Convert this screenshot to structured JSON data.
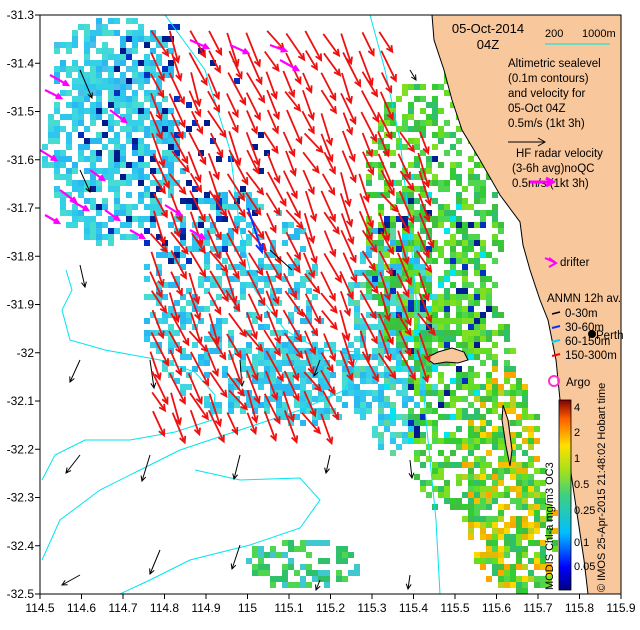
{
  "title": {
    "date": "05-Oct-2014",
    "time": "04Z"
  },
  "scale_bar": {
    "label_a": "200",
    "label_b": "1000m",
    "color": "#40e0d0"
  },
  "legend": {
    "altimetric": [
      "Altimetric sealevel",
      "(0.1m contours)",
      "and velocity for",
      "05-Oct 04Z",
      "0.5m/s (1kt 3h)"
    ],
    "hf_radar": [
      "HF radar velocity",
      "(3-6h avg)noQC",
      "0.5m/s (1kt 3h)"
    ],
    "drifter": "drifter",
    "anmn_title": "ANMN 12h av.",
    "anmn_items": [
      "0-30m",
      "30-60m",
      "60-150m",
      "150-300m"
    ],
    "perth": "Perth",
    "argo": "Argo"
  },
  "colorbar": {
    "ticks": [
      "4",
      "2",
      "1",
      "0.5",
      "0.25",
      "0.1",
      "0.05"
    ],
    "label": "MODIS Chl-a mg/m3 OC3"
  },
  "credit": "© IMOS 25-Apr-2015 21:48:02 Hobart time",
  "axes": {
    "x_ticks": [
      "114.5",
      "114.6",
      "114.7",
      "114.8",
      "114.9",
      "115",
      "115.1",
      "115.2",
      "115.3",
      "115.4",
      "115.5",
      "115.6",
      "115.7",
      "115.8",
      "115.9"
    ],
    "y_ticks": [
      "-31.3",
      "-31.4",
      "-31.5",
      "-31.6",
      "-31.7",
      "-31.8",
      "-31.9",
      "-32",
      "-32.1",
      "-32.2",
      "-32.3",
      "-32.4",
      "-32.5"
    ],
    "lon_range": [
      114.5,
      115.9
    ],
    "lat_range": [
      -32.5,
      -31.3
    ]
  },
  "colors": {
    "land": "#f8c79b",
    "coast": "#000000",
    "isobath": "#00e5ee",
    "altimetry_arrow": "#000000",
    "hf_arrow": "#ee1111",
    "drifter": "#ff00ff",
    "argo": "#ff33cc",
    "anmn": [
      "#000000",
      "#1030ff",
      "#00d0ff",
      "#ff0000"
    ]
  },
  "icons": {
    "drifter": "magenta-arrow-icon",
    "argo": "circle-icon",
    "perth": "filled-dot-icon"
  }
}
